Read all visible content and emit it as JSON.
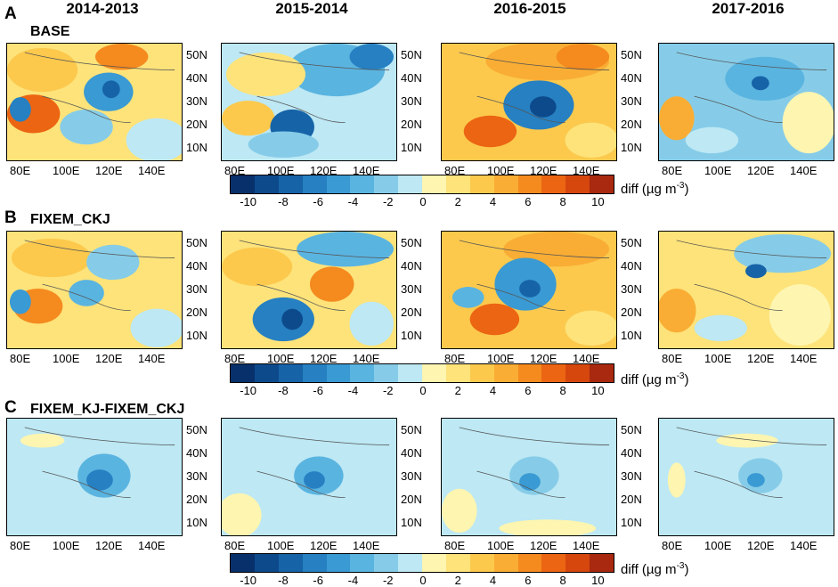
{
  "columns": [
    "2014-2013",
    "2015-2014",
    "2016-2015",
    "2017-2016"
  ],
  "rows": [
    {
      "letter": "A",
      "title": "BASE"
    },
    {
      "letter": "B",
      "title": "FIXEM_CKJ"
    },
    {
      "letter": "C",
      "title": "FIXEM_KJ-FIXEM_CKJ"
    }
  ],
  "axes": {
    "lat_labels": [
      "50N",
      "40N",
      "30N",
      "20N",
      "10N"
    ],
    "lon_labels": [
      "80E",
      "100E",
      "120E",
      "140E"
    ]
  },
  "colorbar": {
    "tick_labels": [
      "-10",
      "-8",
      "-6",
      "-4",
      "-2",
      "0",
      "2",
      "4",
      "6",
      "8",
      "10"
    ],
    "unit_prefix": "diff (µg m",
    "unit_exp": "-3",
    "unit_suffix": ")",
    "colors": [
      "#08306b",
      "#0d4a8c",
      "#1763a8",
      "#2680c2",
      "#3a9ad3",
      "#5ab4e0",
      "#86cce8",
      "#bde8f4",
      "#fdf5b0",
      "#fde37a",
      "#fcc94d",
      "#f9ad34",
      "#f58a1f",
      "#ec6512",
      "#d6470e",
      "#a8290f"
    ]
  }
}
